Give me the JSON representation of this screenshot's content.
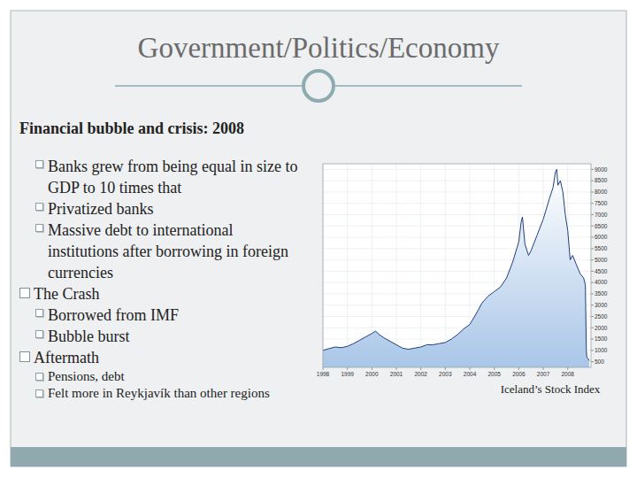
{
  "slide": {
    "title": "Government/Politics/Economy",
    "intro": {
      "heading": "Financial bubble and crisis: 2008",
      "items": [
        "Banks grew from being equal in size to GDP to 10 times that",
        "Privatized banks",
        "Massive debt to international institutions after borrowing in foreign currencies"
      ]
    },
    "sections": [
      {
        "heading": "The Crash",
        "items": [
          "Borrowed from IMF",
          "Bubble burst"
        ]
      },
      {
        "heading": "Aftermath",
        "items": [
          "Pensions, debt",
          "Felt more in Reykjavík than other regions"
        ]
      }
    ]
  },
  "chart_data": {
    "type": "area",
    "title": "Iceland’s Stock Index",
    "x": [
      1998.0,
      1998.25,
      1998.5,
      1998.75,
      1999.0,
      1999.25,
      1999.5,
      1999.75,
      2000.0,
      2000.15,
      2000.3,
      2000.5,
      2000.75,
      2001.0,
      2001.25,
      2001.5,
      2001.75,
      2002.0,
      2002.25,
      2002.5,
      2002.75,
      2003.0,
      2003.25,
      2003.5,
      2003.75,
      2004.0,
      2004.25,
      2004.5,
      2004.75,
      2005.0,
      2005.25,
      2005.5,
      2005.75,
      2006.0,
      2006.1,
      2006.15,
      2006.25,
      2006.4,
      2006.5,
      2006.75,
      2007.0,
      2007.25,
      2007.4,
      2007.5,
      2007.55,
      2007.6,
      2007.7,
      2007.8,
      2007.9,
      2008.0,
      2008.1,
      2008.2,
      2008.35,
      2008.5,
      2008.65,
      2008.72,
      2008.76,
      2008.78,
      2008.85,
      2008.88
    ],
    "values": [
      1000,
      1080,
      1150,
      1120,
      1180,
      1300,
      1450,
      1600,
      1750,
      1850,
      1700,
      1550,
      1400,
      1250,
      1100,
      1050,
      1100,
      1150,
      1250,
      1250,
      1300,
      1350,
      1500,
      1700,
      1950,
      2150,
      2600,
      3100,
      3400,
      3600,
      3800,
      4200,
      4900,
      5800,
      6700,
      6900,
      5700,
      5200,
      5400,
      6100,
      6800,
      7700,
      8200,
      8900,
      9000,
      8300,
      8500,
      8000,
      7000,
      6300,
      5000,
      5200,
      4800,
      4400,
      4200,
      3900,
      1000,
      700,
      600,
      550
    ],
    "color": "#1f3f7a",
    "xlim": [
      1998,
      2008.95
    ],
    "xticks": [
      1998,
      1999,
      2000,
      2001,
      2002,
      2003,
      2004,
      2005,
      2006,
      2007,
      2008
    ],
    "ylim": [
      250,
      9250
    ],
    "yticks": [
      500,
      1000,
      1500,
      2000,
      2500,
      3000,
      3500,
      4000,
      4500,
      5000,
      5500,
      6000,
      6500,
      7000,
      7500,
      8000,
      8500,
      9000
    ],
    "grid": true
  }
}
